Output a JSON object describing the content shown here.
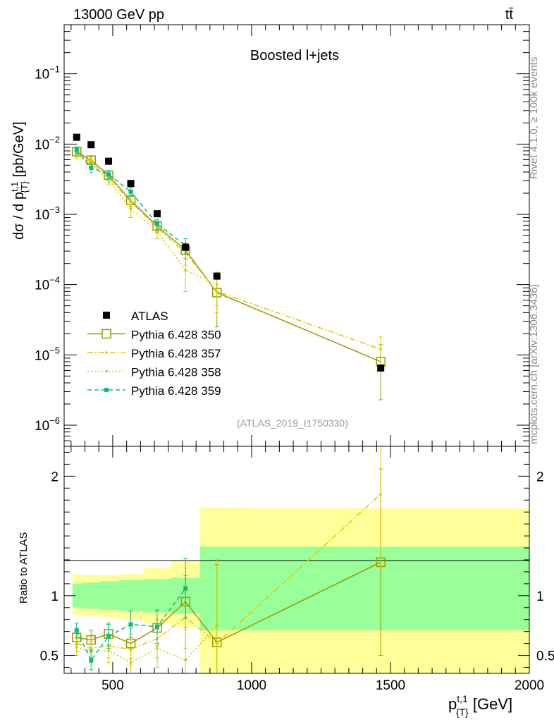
{
  "header": {
    "energy_label": "13000 GeV pp",
    "process_label": "tt̄",
    "rivet_label": "Rivet 4.1.0, ≥ 100k events",
    "mcplots_label": "mcplots.cern.ch [arXiv:1306.3436]"
  },
  "chart_data": {
    "type": "scatter",
    "title": "Boosted l+jets",
    "analysis_label": "(ATLAS_2019_I1750330)",
    "xlabel": "p_{T}^{t,1} [GeV]",
    "ylabel": "dσ / d p_{T}^{t,1} [pb/GeV]",
    "ratio_ylabel": "Ratio to ATLAS",
    "x_scale": "linear",
    "y_scale": "log",
    "xlim": [
      325,
      2000
    ],
    "ylim_main": [
      5e-07,
      0.5
    ],
    "ylim_ratio": [
      0.35,
      2.25
    ],
    "x_ticks": [
      {
        "value": 500,
        "label": "500"
      },
      {
        "value": 1000,
        "label": "1000"
      },
      {
        "value": 1500,
        "label": "1500"
      },
      {
        "value": 2000,
        "label": "2000"
      }
    ],
    "y_ticks_main": [
      {
        "value": 1e-06,
        "mant": "10",
        "exp": "−6"
      },
      {
        "value": 1e-05,
        "mant": "10",
        "exp": "−5"
      },
      {
        "value": 0.0001,
        "mant": "10",
        "exp": "−4"
      },
      {
        "value": 0.001,
        "mant": "10",
        "exp": "−3"
      },
      {
        "value": 0.01,
        "mant": "10",
        "exp": "−2"
      },
      {
        "value": 0.1,
        "mant": "10",
        "exp": "−1"
      }
    ],
    "y_ticks_ratio": [
      {
        "value": 0.5,
        "label": "0.5"
      },
      {
        "value": 1,
        "label": "1"
      },
      {
        "value": 2,
        "label": "2"
      }
    ],
    "bins": [
      [
        355,
        390
      ],
      [
        390,
        455
      ],
      [
        455,
        520
      ],
      [
        520,
        610
      ],
      [
        610,
        710
      ],
      [
        710,
        815
      ],
      [
        815,
        1000
      ],
      [
        1000,
        2000
      ]
    ],
    "data": {
      "name": "ATLAS",
      "x": [
        370,
        422,
        485,
        565,
        660,
        762,
        875,
        1465
      ],
      "y": [
        0.0125,
        0.0098,
        0.0057,
        0.00275,
        0.00102,
        0.00034,
        0.000132,
        6.5e-06
      ]
    },
    "uncertainty_bands": {
      "stat_green": [
        [
          0.9,
          1.1
        ],
        [
          0.89,
          1.11
        ],
        [
          0.88,
          1.12
        ],
        [
          0.87,
          1.13
        ],
        [
          0.86,
          1.14
        ],
        [
          0.85,
          1.15
        ],
        [
          0.71,
          1.41
        ],
        [
          0.71,
          1.41
        ]
      ],
      "total_yellow": [
        [
          0.84,
          1.18
        ],
        [
          0.83,
          1.17
        ],
        [
          0.82,
          1.17
        ],
        [
          0.8,
          1.18
        ],
        [
          0.77,
          1.23
        ],
        [
          0.74,
          1.29
        ],
        [
          0.35,
          1.74
        ],
        [
          0.35,
          1.73
        ]
      ]
    },
    "series": [
      {
        "name": "Pythia 6.428 350",
        "color": "#999900",
        "style": "solid",
        "marker": "open-square",
        "x": [
          370,
          422,
          485,
          565,
          660,
          762,
          875,
          1465
        ],
        "y": [
          0.0078,
          0.0059,
          0.0036,
          0.00158,
          0.00068,
          0.00031,
          7.7e-05,
          8e-06
        ],
        "err_lo": [
          0.001,
          0.0007,
          0.0005,
          0.00028,
          0.00012,
          8e-05,
          5.2e-05,
          5.7e-06
        ],
        "err_hi": [
          0.001,
          0.0007,
          0.0005,
          0.00028,
          0.00012,
          8e-05,
          5e-05,
          6e-06
        ],
        "ratio": [
          0.65,
          0.63,
          0.68,
          0.6,
          0.73,
          0.95,
          0.61,
          1.28
        ],
        "ratio_err": [
          0.06,
          0.08,
          0.09,
          0.13,
          0.15,
          0.22,
          0.65,
          0.78
        ]
      },
      {
        "name": "Pythia 6.428 357",
        "color": "#e6c300",
        "style": "dashdot",
        "marker": "small-dot",
        "x": [
          370,
          422,
          485,
          565,
          660,
          762,
          875,
          1465
        ],
        "y": [
          0.0075,
          0.0055,
          0.0033,
          0.0015,
          0.00065,
          0.00028,
          8e-05,
          1.2e-05
        ],
        "err_lo": [
          0.0009,
          0.0007,
          0.0005,
          0.0003,
          0.00012,
          9e-05,
          4e-05,
          6e-06
        ],
        "err_hi": [
          0.0009,
          0.0007,
          0.0005,
          0.0003,
          0.00012,
          9e-05,
          4e-05,
          6e-06
        ],
        "ratio": [
          0.6,
          0.56,
          0.58,
          0.55,
          0.64,
          0.82,
          0.6,
          1.85
        ],
        "ratio_err": [
          0.07,
          0.09,
          0.1,
          0.13,
          0.16,
          0.26,
          0.55,
          0.62
        ]
      },
      {
        "name": "Pythia 6.428 358",
        "color": "#cccc00",
        "style": "dotted",
        "marker": "small-dot",
        "x": [
          370,
          422,
          485,
          565,
          660,
          762,
          875
        ],
        "y": [
          0.0071,
          0.0052,
          0.0031,
          0.0012,
          0.00057,
          0.00016,
          0.0001
        ],
        "err_lo": [
          0.0009,
          0.0007,
          0.0005,
          0.0003,
          0.00012,
          8e-05,
          5e-05
        ],
        "err_hi": [
          0.0009,
          0.0007,
          0.0005,
          0.0003,
          0.00012,
          8e-05,
          5e-05
        ],
        "ratio": [
          0.57,
          0.53,
          0.54,
          0.44,
          0.56,
          0.46,
          0.75
        ],
        "ratio_err": [
          0.07,
          0.09,
          0.1,
          0.13,
          0.16,
          0.25,
          0.55
        ]
      },
      {
        "name": "Pythia 6.428 359",
        "color": "#00c080",
        "style": "dashed",
        "marker": "filled-square",
        "x": [
          370,
          422,
          485,
          565,
          660,
          762
        ],
        "y": [
          0.0082,
          0.0046,
          0.0037,
          0.0021,
          0.00073,
          0.00036
        ],
        "err_lo": [
          0.0009,
          0.0007,
          0.0005,
          0.0003,
          0.00012,
          9e-05
        ],
        "err_hi": [
          0.0009,
          0.0007,
          0.0005,
          0.0003,
          0.00012,
          9e-05
        ],
        "ratio": [
          0.71,
          0.46,
          0.66,
          0.76,
          0.74,
          1.06
        ],
        "ratio_err": [
          0.06,
          0.08,
          0.1,
          0.11,
          0.14,
          0.25
        ]
      }
    ]
  }
}
